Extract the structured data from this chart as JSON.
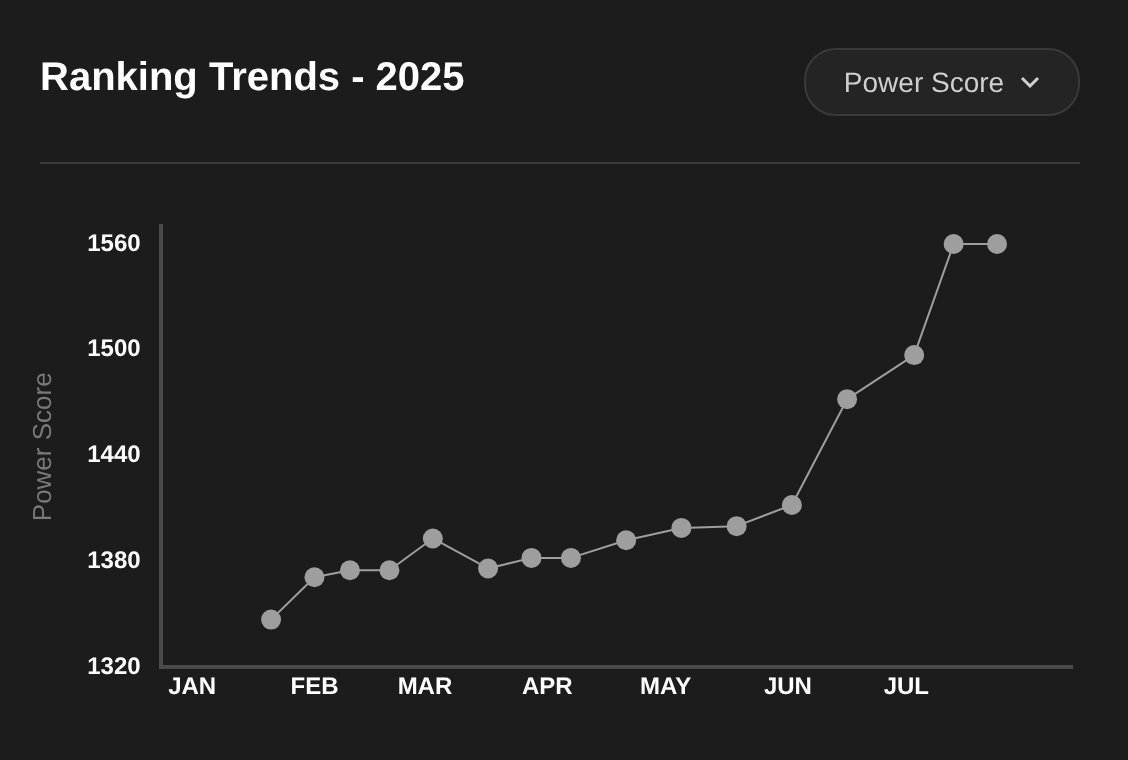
{
  "chart_data": {
    "type": "line",
    "title": "Ranking Trends - 2025",
    "ylabel": "Power Score",
    "annotations": [
      "Power Score"
    ],
    "x": [
      "2025-01-21",
      "2025-02-01",
      "2025-02-10",
      "2025-02-20",
      "2025-03-03",
      "2025-03-17",
      "2025-03-28",
      "2025-04-07",
      "2025-04-21",
      "2025-05-05",
      "2025-05-19",
      "2025-06-02",
      "2025-06-16",
      "2025-07-03",
      "2025-07-13",
      "2025-07-24"
    ],
    "series": [
      {
        "color": "#9e9e9e",
        "values": [
          1347,
          1371,
          1375,
          1375,
          1393,
          1376,
          1382,
          1382,
          1392,
          1399,
          1400,
          1412,
          1472,
          1497,
          1560,
          1560
        ]
      }
    ],
    "xlim": [
      "2024-12-24",
      "2025-08-12"
    ],
    "xticks": [
      {
        "value": "2025-01-01",
        "label": "JAN"
      },
      {
        "value": "2025-02-01",
        "label": "FEB"
      },
      {
        "value": "2025-03-01",
        "label": "MAR"
      },
      {
        "value": "2025-04-01",
        "label": "APR"
      },
      {
        "value": "2025-05-01",
        "label": "MAY"
      },
      {
        "value": "2025-06-01",
        "label": "JUN"
      },
      {
        "value": "2025-07-01",
        "label": "JUL"
      }
    ],
    "ylim": [
      1320,
      1570
    ],
    "yticks": [
      1320,
      1380,
      1440,
      1500,
      1560
    ],
    "grid": false,
    "legend": false,
    "marker": "circle",
    "line_style": "solid"
  }
}
